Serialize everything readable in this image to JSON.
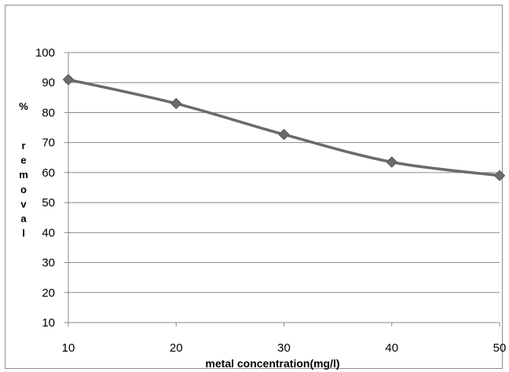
{
  "chart_data": {
    "type": "line",
    "title": "",
    "xlabel": "metal concentration(mg/l)",
    "ylabel": "% removal",
    "x": [
      10,
      20,
      30,
      40,
      50
    ],
    "series": [
      {
        "values": [
          91,
          83,
          72.7,
          63.5,
          59
        ],
        "color": "#6b6b6b"
      }
    ],
    "xlim": [
      10,
      50
    ],
    "ylim": [
      10,
      100
    ],
    "xticks": [
      10,
      20,
      30,
      40,
      50
    ],
    "yticks": [
      10,
      20,
      30,
      40,
      50,
      60,
      70,
      80,
      90,
      100
    ],
    "grid": "horizontal",
    "legend": "none",
    "marker": "diamond"
  }
}
